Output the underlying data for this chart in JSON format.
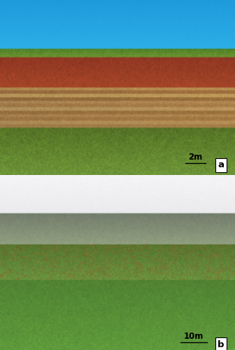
{
  "figsize": [
    3.36,
    5.0
  ],
  "dpi": 100,
  "panel_a": {
    "label": "a",
    "scale_text": "2m",
    "label_box_color": "white",
    "text_color": "black"
  },
  "panel_b": {
    "label": "b",
    "scale_text": "10m",
    "label_box_color": "white",
    "text_color": "black"
  },
  "border_color": "black",
  "border_lw": 0.8,
  "bg_color": "white",
  "panel_a_sky_color": [
    30,
    170,
    230
  ],
  "panel_a_redsoil_color": [
    140,
    55,
    35
  ],
  "panel_a_rock_color": [
    175,
    135,
    80
  ],
  "panel_a_grass_color": [
    100,
    130,
    55
  ],
  "panel_b_sky_color": [
    240,
    240,
    242
  ],
  "panel_b_mtn_color": [
    120,
    120,
    140
  ],
  "panel_b_grass_color": [
    95,
    145,
    60
  ]
}
